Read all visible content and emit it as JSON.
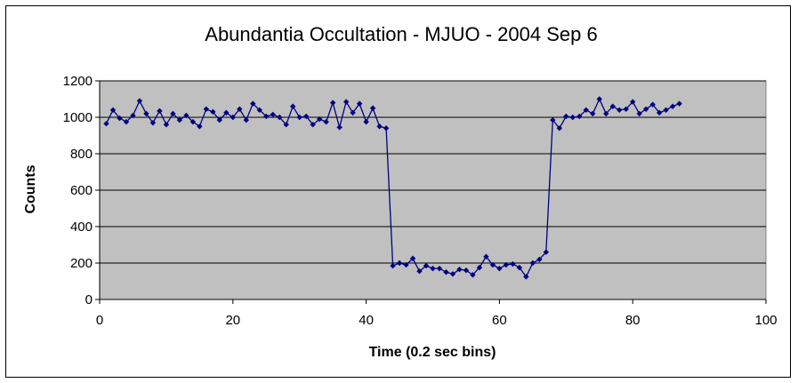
{
  "chart_data": {
    "type": "line",
    "title": "Abundantia Occultation - MJUO - 2004 Sep 6",
    "xlabel": "Time (0.2 sec bins)",
    "ylabel": "Counts",
    "xlim": [
      0,
      100
    ],
    "ylim": [
      0,
      1200
    ],
    "xticks": [
      0,
      20,
      40,
      60,
      80,
      100
    ],
    "yticks": [
      0,
      200,
      400,
      600,
      800,
      1000,
      1200
    ],
    "xtick_labels": [
      "0",
      "20",
      "40",
      "60",
      "80",
      "100"
    ],
    "ytick_labels": [
      "0",
      "200",
      "400",
      "600",
      "800",
      "1000",
      "1200"
    ],
    "grid": "horizontal",
    "legend": "none",
    "plot_background": "#c0c0c0",
    "series_color": "#000080",
    "series": [
      {
        "x": [
          1,
          2,
          3,
          4,
          5,
          6,
          7,
          8,
          9,
          10,
          11,
          12,
          13,
          14,
          15,
          16,
          17,
          18,
          19,
          20,
          21,
          22,
          23,
          24,
          25,
          26,
          27,
          28,
          29,
          30,
          31,
          32,
          33,
          34,
          35,
          36,
          37,
          38,
          39,
          40,
          41,
          42,
          43,
          44,
          45,
          46,
          47,
          48,
          49,
          50,
          51,
          52,
          53,
          54,
          55,
          56,
          57,
          58,
          59,
          60,
          61,
          62,
          63,
          64,
          65,
          66,
          67,
          68,
          69,
          70,
          71,
          72,
          73,
          74,
          75,
          76,
          77,
          78,
          79,
          80,
          81,
          82,
          83,
          84,
          85,
          86,
          87
        ],
        "values": [
          965,
          1040,
          995,
          975,
          1010,
          1090,
          1020,
          970,
          1035,
          960,
          1020,
          985,
          1010,
          975,
          950,
          1045,
          1030,
          985,
          1025,
          1000,
          1045,
          985,
          1075,
          1040,
          1005,
          1015,
          1000,
          960,
          1060,
          1000,
          1005,
          960,
          990,
          975,
          1080,
          945,
          1085,
          1025,
          1075,
          975,
          1050,
          950,
          940,
          185,
          200,
          190,
          225,
          155,
          185,
          170,
          170,
          150,
          140,
          165,
          160,
          135,
          175,
          235,
          190,
          170,
          190,
          195,
          175,
          125,
          200,
          220,
          260,
          985,
          940,
          1005,
          1000,
          1005,
          1040,
          1020,
          1100,
          1020,
          1060,
          1040,
          1045,
          1085,
          1020,
          1045,
          1070,
          1025,
          1040,
          1060,
          1075
        ]
      }
    ]
  }
}
